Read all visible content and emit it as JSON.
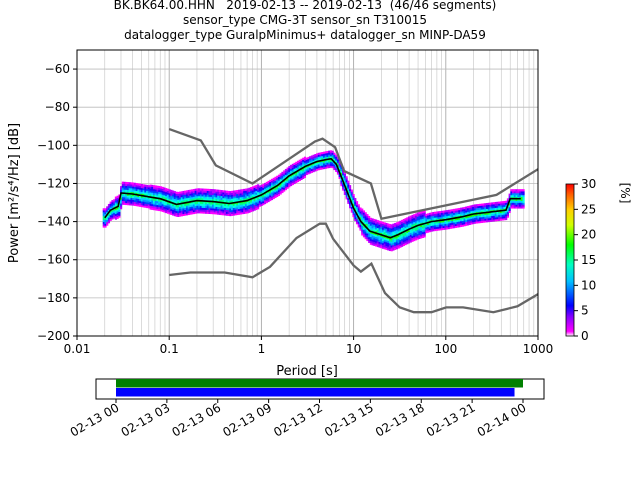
{
  "header": {
    "title_line1": "BK.BK64.00.HHN   2019-02-13 -- 2019-02-13  (46/46 segments)",
    "title_line2": "sensor_type CMG-3T sensor_sn T310015",
    "title_line3": "datalogger_type GuralpMinimus+ datalogger_sn MINP-DA59"
  },
  "chart_data": [
    {
      "type": "heatmap",
      "xlabel": "Period [s]",
      "ylabel": "Power [m²/s⁴/Hz] [dB]",
      "xscale": "log",
      "xlim": [
        0.01,
        1000
      ],
      "ylim": [
        -200,
        -50
      ],
      "xticks": [
        "0.01",
        "0.1",
        "1",
        "10",
        "100",
        "1000"
      ],
      "yticks": [
        "−200",
        "−180",
        "−160",
        "−140",
        "−120",
        "−100",
        "−80",
        "−60"
      ],
      "grid": true,
      "colorbar": {
        "label": "[%]",
        "range": [
          0,
          30
        ],
        "ticks": [
          "0",
          "5",
          "10",
          "15",
          "20",
          "25",
          "30"
        ]
      },
      "nhnm": [
        [
          0.1,
          -91.5
        ],
        [
          0.22,
          -97.4
        ],
        [
          0.32,
          -110.5
        ],
        [
          0.8,
          -120
        ],
        [
          3.8,
          -98
        ],
        [
          4.6,
          -96.5
        ],
        [
          6.3,
          -101
        ],
        [
          7.9,
          -113.5
        ],
        [
          15.4,
          -120
        ],
        [
          20,
          -138.5
        ],
        [
          354.8,
          -126
        ],
        [
          1000,
          -112.5
        ]
      ],
      "nlnm": [
        [
          0.1,
          -168
        ],
        [
          0.17,
          -166.7
        ],
        [
          0.4,
          -166.7
        ],
        [
          0.8,
          -169.2
        ],
        [
          1.24,
          -163.7
        ],
        [
          2.4,
          -148.6
        ],
        [
          4.3,
          -141.1
        ],
        [
          5,
          -141.1
        ],
        [
          6,
          -149
        ],
        [
          10,
          -163
        ],
        [
          12,
          -166.2
        ],
        [
          15.6,
          -162.1
        ],
        [
          21.9,
          -177.5
        ],
        [
          31.6,
          -185
        ],
        [
          45,
          -187.5
        ],
        [
          70,
          -187.5
        ],
        [
          101,
          -185
        ],
        [
          154,
          -185
        ],
        [
          328,
          -187.5
        ],
        [
          600,
          -184.4
        ],
        [
          1000,
          -178
        ]
      ],
      "median": [
        [
          0.02,
          -138
        ],
        [
          0.023,
          -134
        ],
        [
          0.028,
          -132
        ],
        [
          0.03,
          -125
        ],
        [
          0.04,
          -125.5
        ],
        [
          0.06,
          -127
        ],
        [
          0.08,
          -128
        ],
        [
          0.12,
          -131
        ],
        [
          0.2,
          -129
        ],
        [
          0.3,
          -129.5
        ],
        [
          0.45,
          -130.5
        ],
        [
          0.7,
          -129
        ],
        [
          1,
          -126
        ],
        [
          1.5,
          -121
        ],
        [
          2,
          -116
        ],
        [
          3,
          -111
        ],
        [
          4,
          -108.5
        ],
        [
          5,
          -107.5
        ],
        [
          5.7,
          -107
        ],
        [
          6.5,
          -110
        ],
        [
          8,
          -121
        ],
        [
          10,
          -133
        ],
        [
          12,
          -140
        ],
        [
          15,
          -145
        ],
        [
          20,
          -147
        ],
        [
          25,
          -148.5
        ],
        [
          30,
          -147
        ],
        [
          40,
          -144
        ],
        [
          50,
          -142
        ],
        [
          70,
          -140
        ],
        [
          100,
          -139
        ],
        [
          150,
          -137.5
        ],
        [
          200,
          -136
        ],
        [
          300,
          -135
        ],
        [
          450,
          -134
        ],
        [
          500,
          -128
        ],
        [
          650,
          -128
        ]
      ]
    },
    {
      "type": "bar",
      "description": "data availability timeline",
      "xticks": [
        "02-13 00",
        "02-13 03",
        "02-13 06",
        "02-13 09",
        "02-13 12",
        "02-13 15",
        "02-13 18",
        "02-13 21",
        "02-14 00"
      ],
      "xlim": [
        "2019-02-13T00:00",
        "2019-02-14T00:00"
      ],
      "series": [
        {
          "color": "#008000",
          "start": "2019-02-13T00:00",
          "end": "2019-02-14T00:00"
        },
        {
          "color": "#0000ff",
          "start": "2019-02-13T00:00",
          "end": "2019-02-13T23:30"
        }
      ]
    }
  ]
}
